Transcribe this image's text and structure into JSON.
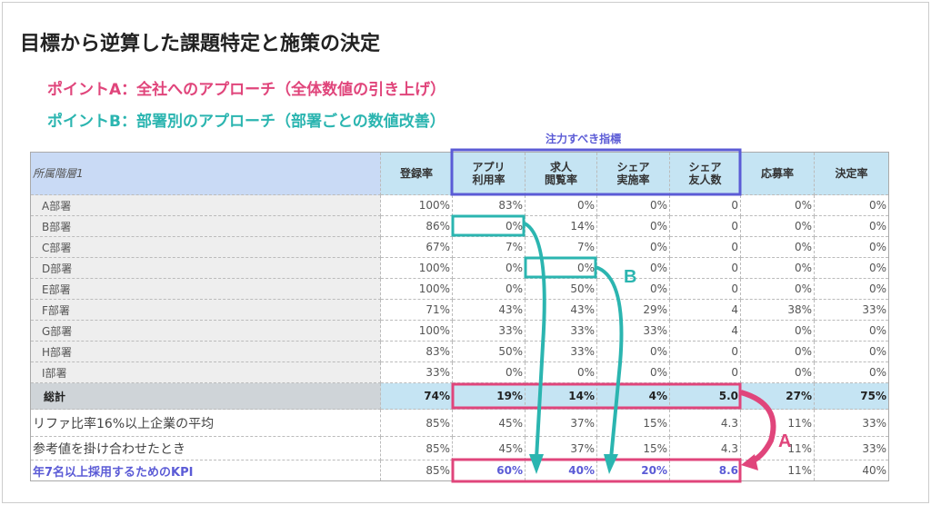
{
  "title": "目標から逆算した課題特定と施策の決定",
  "point_a": "ポイントA：全社へのアプローチ（全体数値の引き上げ）",
  "point_b": "ポイントB：部署別のアプローチ（部署ごとの数値改善）",
  "focus_label": "注力すべき指標",
  "marker_a": "A",
  "marker_b": "B",
  "colors": {
    "pink": "#e0457b",
    "teal": "#2bb5b0",
    "blue": "#5b5bd6"
  },
  "table": {
    "header": [
      "所属階層1",
      "登録率",
      "アプリ\n利用率",
      "求人\n閲覧率",
      "シェア\n実施率",
      "シェア\n友人数",
      "応募率",
      "決定率"
    ],
    "departments": [
      [
        "A部署",
        "100%",
        "83%",
        "0%",
        "0%",
        "0",
        "0%",
        "0%"
      ],
      [
        "B部署",
        "86%",
        "0%",
        "14%",
        "0%",
        "0",
        "0%",
        "0%"
      ],
      [
        "C部署",
        "67%",
        "7%",
        "7%",
        "0%",
        "0",
        "0%",
        "0%"
      ],
      [
        "D部署",
        "100%",
        "0%",
        "0%",
        "0%",
        "0",
        "0%",
        "0%"
      ],
      [
        "E部署",
        "100%",
        "0%",
        "50%",
        "0%",
        "0",
        "0%",
        "0%"
      ],
      [
        "F部署",
        "71%",
        "43%",
        "43%",
        "29%",
        "4",
        "38%",
        "33%"
      ],
      [
        "G部署",
        "100%",
        "33%",
        "33%",
        "33%",
        "4",
        "0%",
        "0%"
      ],
      [
        "H部署",
        "83%",
        "50%",
        "33%",
        "0%",
        "0",
        "0%",
        "0%"
      ],
      [
        "I部署",
        "33%",
        "0%",
        "0%",
        "0%",
        "0",
        "0%",
        "0%"
      ]
    ],
    "total": [
      "総計",
      "74%",
      "19%",
      "14%",
      "4%",
      "5.0",
      "27%",
      "75%"
    ],
    "referral_avg": [
      "リファ比率16%以上企業の平均",
      "85%",
      "45%",
      "37%",
      "15%",
      "4.3",
      "11%",
      "33%"
    ],
    "combined": [
      "参考値を掛け合わせたとき",
      "85%",
      "45%",
      "37%",
      "15%",
      "4.3",
      "11%",
      "33%"
    ],
    "kpi": [
      "年7名以上採用するためのKPI",
      "85%",
      "60%",
      "40%",
      "20%",
      "8.6",
      "11%",
      "40%"
    ]
  }
}
